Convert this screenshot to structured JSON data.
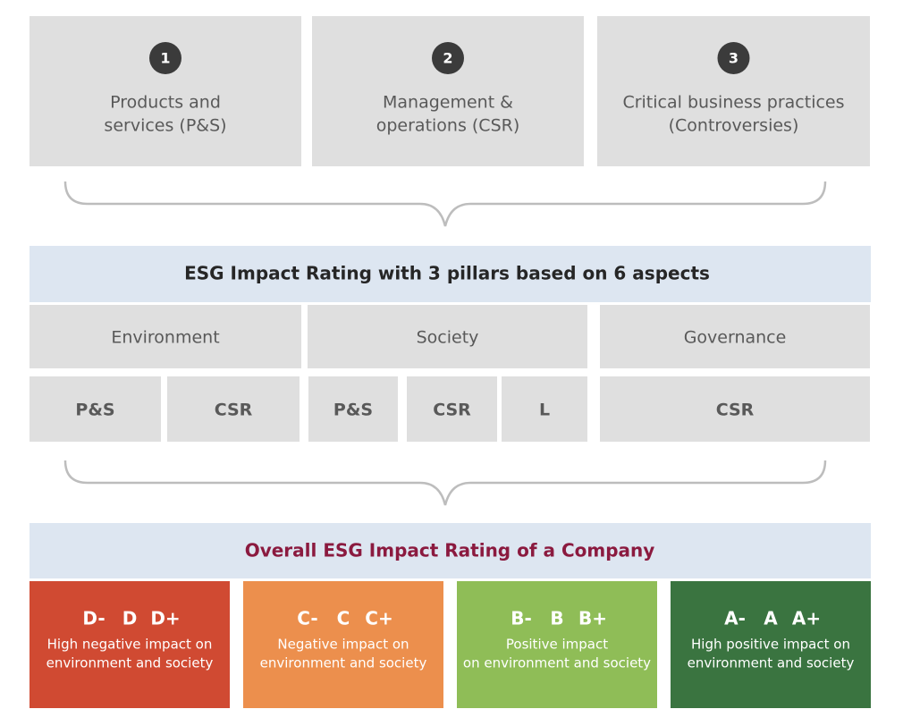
{
  "steps": [
    {
      "number": "1",
      "label_lines": [
        "Products and",
        "services (P&S)"
      ]
    },
    {
      "number": "2",
      "label_lines": [
        "Management &",
        "operations (CSR)"
      ]
    },
    {
      "number": "3",
      "label_lines": [
        "Critical business practices",
        "(Controversies)"
      ]
    }
  ],
  "rating_title": "ESG Impact Rating with 3 pillars based on 6 aspects",
  "pillars": [
    {
      "name": "Environment",
      "aspects": [
        "P&S",
        "CSR"
      ]
    },
    {
      "name": "Society",
      "aspects": [
        "P&S",
        "CSR",
        "L"
      ]
    },
    {
      "name": "Governance",
      "aspects": [
        "CSR"
      ]
    }
  ],
  "overall_title": "Overall ESG Impact Rating of a Company",
  "ratings": [
    {
      "grades": [
        "D-",
        "D",
        "D+"
      ],
      "description_lines": [
        "High negative impact on",
        "environment and society"
      ]
    },
    {
      "grades": [
        "C-",
        "C",
        "C+"
      ],
      "description_lines": [
        "Negative impact on",
        "environment and society"
      ]
    },
    {
      "grades": [
        "B-",
        "B",
        "B+"
      ],
      "description_lines": [
        "Positive impact",
        "on environment and society"
      ]
    },
    {
      "grades": [
        "A-",
        "A",
        "A+"
      ],
      "description_lines": [
        "High positive impact on",
        "environment and society"
      ]
    }
  ]
}
